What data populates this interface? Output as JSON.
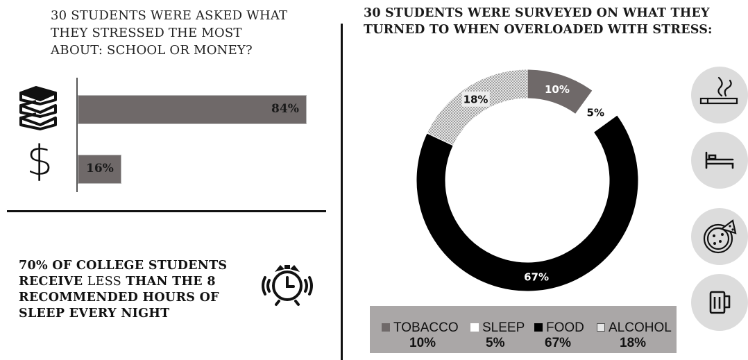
{
  "left_chart": {
    "question_lines": [
      "30 STUDENTS WERE ASKED WHAT",
      "THEY STRESSED THE MOST",
      "ABOUT: SCHOOL OR MONEY?"
    ],
    "bar_school_label": "84%",
    "bar_money_label": "16%"
  },
  "sleep_fact": {
    "line1": "70% OF COLLEGE STUDENTS",
    "line2_bold_a": "RECEIVE ",
    "line2_light": "LESS",
    "line2_bold_b": " THAN THE 8",
    "line3": "RECOMMENDED HOURS OF",
    "line4": "SLEEP EVERY NIGHT"
  },
  "right_chart": {
    "title_line1": "30 STUDENTS WERE SURVEYED ON WHAT THEY",
    "title_line2_a": "TURNED TO WHEN ",
    "title_line2_bold": "OVERLOADED",
    "title_line2_b": " WITH STRESS:"
  },
  "legend": [
    {
      "name": "TOBACCO",
      "pct": "10%"
    },
    {
      "name": "SLEEP",
      "pct": "5%"
    },
    {
      "name": "FOOD",
      "pct": "67%"
    },
    {
      "name": "ALCOHOL",
      "pct": "18%"
    }
  ],
  "colors": {
    "tobacco": "#6f6969",
    "sleep": "#ffffff",
    "food": "#000000",
    "alcohol": "#d9d9d9",
    "bar": "#6f6969"
  },
  "chart_data": [
    {
      "type": "bar",
      "orientation": "horizontal",
      "categories": [
        "school-icon",
        "money-icon"
      ],
      "values": [
        84,
        16
      ],
      "value_labels": [
        "84%",
        "16%"
      ],
      "xlim": [
        0,
        100
      ]
    },
    {
      "type": "pie",
      "donut": true,
      "categories": [
        "TOBACCO",
        "SLEEP",
        "FOOD",
        "ALCOHOL"
      ],
      "values": [
        10,
        5,
        67,
        18
      ],
      "labels": [
        "10%",
        "5%",
        "67%",
        "18%"
      ],
      "legend_position": "bottom"
    }
  ]
}
